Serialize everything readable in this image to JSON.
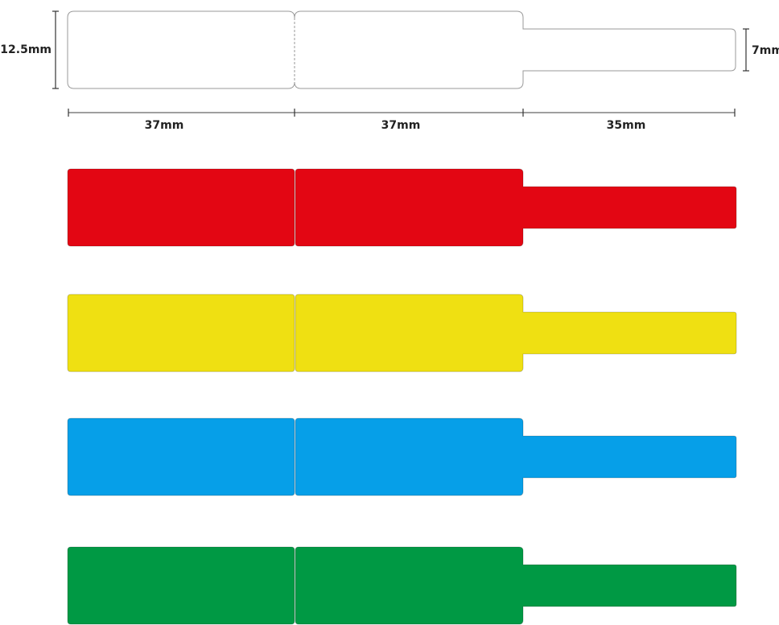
{
  "dimensions": {
    "height_main": "12.5mm",
    "height_tail": "7mm",
    "width_segment_1": "37mm",
    "width_segment_2": "37mm",
    "width_tail": "35mm"
  },
  "labels": [
    {
      "color_name": "white",
      "color": "#ffffff",
      "outlined": true
    },
    {
      "color_name": "red",
      "color": "#e30613"
    },
    {
      "color_name": "yellow",
      "color": "#efe012"
    },
    {
      "color_name": "blue",
      "color": "#069fe8"
    },
    {
      "color_name": "green",
      "color": "#009944"
    }
  ]
}
